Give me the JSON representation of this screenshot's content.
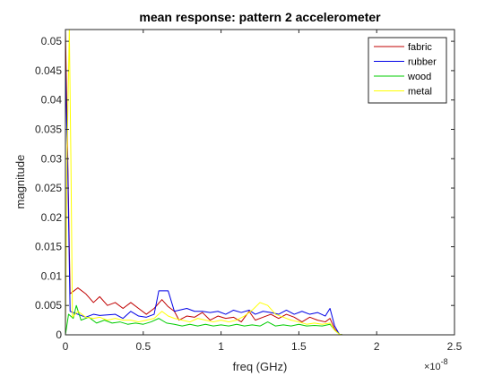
{
  "chart_data": {
    "type": "line",
    "title": "mean response: pattern 2 accelerometer",
    "xlabel": "freq (GHz)",
    "ylabel": "magnitude",
    "x_multiplier": "×10",
    "x_multiplier_exponent": "-8",
    "xlim": [
      0,
      2.5
    ],
    "ylim": [
      0,
      0.052
    ],
    "xticks": [
      0,
      0.5,
      1,
      1.5,
      2,
      2.5
    ],
    "xtick_labels": [
      "0",
      "0.5",
      "1",
      "1.5",
      "2",
      "2.5"
    ],
    "yticks": [
      0,
      0.005,
      0.01,
      0.015,
      0.02,
      0.025,
      0.03,
      0.035,
      0.04,
      0.045,
      0.05
    ],
    "ytick_labels": [
      "0",
      "0.005",
      "0.01",
      "0.015",
      "0.02",
      "0.025",
      "0.03",
      "0.035",
      "0.04",
      "0.045",
      "0.05"
    ],
    "grid": false,
    "legend_position": "top-right",
    "series": [
      {
        "name": "fabric",
        "color": "#c00000",
        "points": [
          [
            0.0,
            0.052
          ],
          [
            0.015,
            0.03
          ],
          [
            0.03,
            0.007
          ],
          [
            0.08,
            0.008
          ],
          [
            0.13,
            0.007
          ],
          [
            0.18,
            0.0055
          ],
          [
            0.22,
            0.0065
          ],
          [
            0.27,
            0.005
          ],
          [
            0.32,
            0.0055
          ],
          [
            0.37,
            0.0045
          ],
          [
            0.42,
            0.0055
          ],
          [
            0.47,
            0.0045
          ],
          [
            0.52,
            0.0035
          ],
          [
            0.57,
            0.0045
          ],
          [
            0.62,
            0.006
          ],
          [
            0.66,
            0.0048
          ],
          [
            0.7,
            0.004
          ],
          [
            0.73,
            0.0025
          ],
          [
            0.78,
            0.0032
          ],
          [
            0.83,
            0.003
          ],
          [
            0.88,
            0.0038
          ],
          [
            0.93,
            0.0025
          ],
          [
            0.98,
            0.0032
          ],
          [
            1.03,
            0.0028
          ],
          [
            1.08,
            0.003
          ],
          [
            1.13,
            0.0022
          ],
          [
            1.18,
            0.004
          ],
          [
            1.22,
            0.0025
          ],
          [
            1.27,
            0.003
          ],
          [
            1.32,
            0.0035
          ],
          [
            1.37,
            0.0028
          ],
          [
            1.42,
            0.0035
          ],
          [
            1.47,
            0.003
          ],
          [
            1.52,
            0.0022
          ],
          [
            1.57,
            0.003
          ],
          [
            1.62,
            0.0025
          ],
          [
            1.67,
            0.0022
          ],
          [
            1.7,
            0.0028
          ],
          [
            1.73,
            0.001
          ],
          [
            1.76,
            0.0001
          ],
          [
            1.78,
            0.0
          ],
          [
            2.5,
            0.0
          ]
        ]
      },
      {
        "name": "rubber",
        "color": "#0000e6",
        "points": [
          [
            0.0,
            0.046
          ],
          [
            0.015,
            0.028
          ],
          [
            0.03,
            0.004
          ],
          [
            0.08,
            0.0035
          ],
          [
            0.13,
            0.003
          ],
          [
            0.18,
            0.0035
          ],
          [
            0.22,
            0.0033
          ],
          [
            0.27,
            0.0034
          ],
          [
            0.32,
            0.0035
          ],
          [
            0.37,
            0.0028
          ],
          [
            0.42,
            0.004
          ],
          [
            0.47,
            0.0032
          ],
          [
            0.52,
            0.003
          ],
          [
            0.57,
            0.0035
          ],
          [
            0.6,
            0.0075
          ],
          [
            0.66,
            0.0075
          ],
          [
            0.7,
            0.004
          ],
          [
            0.73,
            0.0042
          ],
          [
            0.78,
            0.0045
          ],
          [
            0.83,
            0.004
          ],
          [
            0.88,
            0.004
          ],
          [
            0.93,
            0.0038
          ],
          [
            0.98,
            0.004
          ],
          [
            1.03,
            0.0035
          ],
          [
            1.08,
            0.0042
          ],
          [
            1.13,
            0.0038
          ],
          [
            1.18,
            0.0042
          ],
          [
            1.22,
            0.0035
          ],
          [
            1.27,
            0.004
          ],
          [
            1.32,
            0.0038
          ],
          [
            1.37,
            0.0035
          ],
          [
            1.42,
            0.0042
          ],
          [
            1.47,
            0.0035
          ],
          [
            1.52,
            0.004
          ],
          [
            1.57,
            0.0035
          ],
          [
            1.62,
            0.0038
          ],
          [
            1.67,
            0.0032
          ],
          [
            1.7,
            0.0045
          ],
          [
            1.73,
            0.0015
          ],
          [
            1.76,
            0.0001
          ],
          [
            1.78,
            0.0
          ],
          [
            2.5,
            0.0
          ]
        ]
      },
      {
        "name": "wood",
        "color": "#00cc00",
        "points": [
          [
            0.0,
            0.0
          ],
          [
            0.02,
            0.0035
          ],
          [
            0.05,
            0.0028
          ],
          [
            0.07,
            0.005
          ],
          [
            0.1,
            0.0025
          ],
          [
            0.15,
            0.003
          ],
          [
            0.2,
            0.002
          ],
          [
            0.25,
            0.0025
          ],
          [
            0.3,
            0.002
          ],
          [
            0.35,
            0.0022
          ],
          [
            0.4,
            0.0018
          ],
          [
            0.45,
            0.002
          ],
          [
            0.5,
            0.0018
          ],
          [
            0.55,
            0.0022
          ],
          [
            0.6,
            0.0028
          ],
          [
            0.65,
            0.002
          ],
          [
            0.7,
            0.0018
          ],
          [
            0.75,
            0.0015
          ],
          [
            0.8,
            0.0018
          ],
          [
            0.85,
            0.0015
          ],
          [
            0.9,
            0.0018
          ],
          [
            0.95,
            0.0015
          ],
          [
            1.0,
            0.0017
          ],
          [
            1.05,
            0.0015
          ],
          [
            1.1,
            0.0018
          ],
          [
            1.15,
            0.0015
          ],
          [
            1.2,
            0.0017
          ],
          [
            1.25,
            0.0015
          ],
          [
            1.3,
            0.0022
          ],
          [
            1.35,
            0.0015
          ],
          [
            1.4,
            0.0017
          ],
          [
            1.45,
            0.0015
          ],
          [
            1.5,
            0.0018
          ],
          [
            1.55,
            0.0015
          ],
          [
            1.6,
            0.0016
          ],
          [
            1.65,
            0.0015
          ],
          [
            1.7,
            0.0018
          ],
          [
            1.73,
            0.0008
          ],
          [
            1.76,
            0.0001
          ],
          [
            1.78,
            0.0
          ],
          [
            2.5,
            0.0
          ]
        ]
      },
      {
        "name": "metal",
        "color": "#ffff00",
        "points": [
          [
            0.0,
            0.0
          ],
          [
            0.01,
            0.03
          ],
          [
            0.025,
            0.052
          ],
          [
            0.035,
            0.03
          ],
          [
            0.045,
            0.003
          ],
          [
            0.08,
            0.004
          ],
          [
            0.13,
            0.003
          ],
          [
            0.18,
            0.0028
          ],
          [
            0.22,
            0.003
          ],
          [
            0.27,
            0.0025
          ],
          [
            0.32,
            0.0028
          ],
          [
            0.37,
            0.0025
          ],
          [
            0.42,
            0.0025
          ],
          [
            0.47,
            0.0022
          ],
          [
            0.52,
            0.0025
          ],
          [
            0.57,
            0.0028
          ],
          [
            0.62,
            0.004
          ],
          [
            0.66,
            0.0032
          ],
          [
            0.7,
            0.0028
          ],
          [
            0.75,
            0.0025
          ],
          [
            0.8,
            0.0022
          ],
          [
            0.85,
            0.0028
          ],
          [
            0.9,
            0.0025
          ],
          [
            0.95,
            0.0022
          ],
          [
            1.0,
            0.0025
          ],
          [
            1.05,
            0.0022
          ],
          [
            1.1,
            0.0025
          ],
          [
            1.15,
            0.0032
          ],
          [
            1.2,
            0.0042
          ],
          [
            1.25,
            0.0055
          ],
          [
            1.3,
            0.005
          ],
          [
            1.35,
            0.0035
          ],
          [
            1.4,
            0.003
          ],
          [
            1.45,
            0.0025
          ],
          [
            1.5,
            0.0022
          ],
          [
            1.55,
            0.0018
          ],
          [
            1.6,
            0.002
          ],
          [
            1.65,
            0.0018
          ],
          [
            1.7,
            0.002
          ],
          [
            1.73,
            0.0008
          ],
          [
            1.76,
            0.0001
          ],
          [
            1.78,
            0.0
          ],
          [
            2.5,
            0.0
          ]
        ]
      }
    ]
  }
}
